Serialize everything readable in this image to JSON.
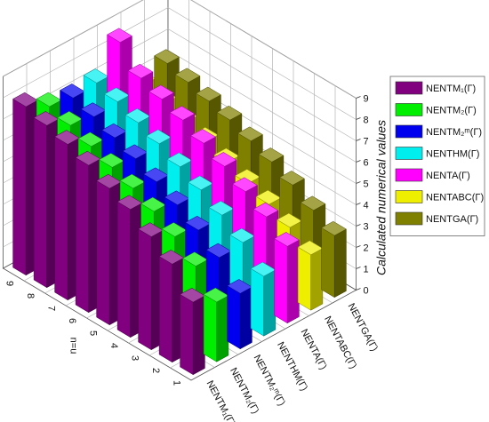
{
  "chart_data": {
    "type": "bar",
    "subtype": "3d-grouped-bar",
    "x": [
      "1",
      "2",
      "3",
      "4",
      "5",
      "6",
      "7",
      "8",
      "9"
    ],
    "xlabel": "n=u",
    "zlabel": "Calculated numerical values",
    "zlim": [
      0,
      9
    ],
    "zticks": [
      "0",
      "1",
      "2",
      "3",
      "4",
      "5",
      "6",
      "7",
      "8",
      "9"
    ],
    "grid": true,
    "legend_position": "right",
    "series": [
      {
        "name": "NENTM₁(Γ)",
        "axis_label": "NENTM₁(Γ)",
        "color": "#800080",
        "values": [
          3.4,
          4.6,
          5.3,
          6.0,
          6.4,
          6.9,
          7.3,
          7.6,
          7.9
        ]
      },
      {
        "name": "NENTM₂(Γ)",
        "axis_label": "NENTM₂(Γ)",
        "color": "#00ee00",
        "values": [
          2.8,
          3.9,
          4.7,
          5.3,
          5.8,
          6.2,
          6.6,
          7.0,
          7.3
        ]
      },
      {
        "name": "NENTM₂ᵐ(Γ)",
        "axis_label": "NENTM₂ᵐ(Γ)",
        "color": "#0000ee",
        "values": [
          2.6,
          3.7,
          4.4,
          5.0,
          5.5,
          6.0,
          6.4,
          6.8,
          7.1
        ]
      },
      {
        "name": "NENTHM(Γ)",
        "axis_label": "NENTHM(Γ)",
        "color": "#00eeee",
        "values": [
          2.8,
          3.8,
          4.5,
          5.1,
          5.6,
          6.1,
          6.5,
          6.9,
          7.2
        ]
      },
      {
        "name": "NENTA(Γ)",
        "axis_label": "NENTA(Γ)",
        "color": "#ff00ff",
        "values": [
          3.6,
          4.4,
          5.0,
          5.6,
          6.1,
          6.6,
          7.0,
          7.4,
          8.5
        ]
      },
      {
        "name": "NENTABC(Γ)",
        "axis_label": "NENTABC(Γ)",
        "color": "#eeee00",
        "values": [
          2.6,
          3.3,
          3.8,
          4.2,
          4.6,
          5.0,
          5.3,
          5.6,
          5.9
        ]
      },
      {
        "name": "NENTGA(Γ)",
        "axis_label": "NENTGA(Γ)",
        "color": "#808000",
        "values": [
          2.9,
          3.5,
          4.1,
          4.6,
          5.0,
          5.4,
          5.7,
          6.0,
          6.3
        ]
      }
    ]
  }
}
